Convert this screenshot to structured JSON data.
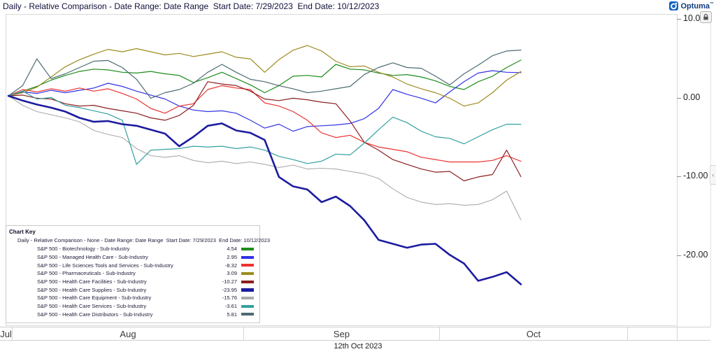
{
  "titlebar": {
    "title": "Daily - Relative Comparison - Date Range: Date Range  Start Date: 7/29/2023  End Date: 10/12/2023"
  },
  "logo": {
    "text": "Optuma",
    "tm": "™"
  },
  "controls": {
    "collapse_arrow": "‹"
  },
  "y_axis": {
    "labels": [
      "10.00",
      "0.00",
      "-10.00",
      "-20.00"
    ],
    "values": [
      10,
      0,
      -10,
      -20
    ]
  },
  "x_axis": {
    "months": [
      "Jul",
      "Aug",
      "Sep",
      "Oct"
    ],
    "footer_date": "12th Oct 2023"
  },
  "chart_key": {
    "title": "Chart Key",
    "subtitle": "Daily - Relative Comparison - None - Date Range: Date Range  Start Date: 7/29/2023  End Date: 10/12/2023"
  },
  "chart_data": {
    "type": "line",
    "title": "Daily - Relative Comparison",
    "start_date": "7/29/2023",
    "end_date": "10/12/2023",
    "ylim": [
      -26,
      10.5
    ],
    "grid": false,
    "legend_position": "bottom-left box (Chart Key)",
    "x_description": "trading days from late Jul 2023 to 12 Oct 2023, 37 sampled points per series",
    "series": [
      {
        "name": "biotechnology",
        "label": "S&P 500 - Biotechnology - Sub-Industry",
        "value_label": "4.54",
        "end_value": 4.54,
        "color": "#1e8c1e",
        "width": 1.2,
        "values": [
          0,
          0.6,
          1.2,
          2.0,
          2.6,
          3.1,
          3.4,
          3.3,
          3.0,
          2.9,
          3.1,
          2.8,
          2.6,
          1.7,
          2.3,
          3.0,
          2.2,
          1.4,
          0.4,
          1.3,
          2.5,
          2.6,
          2.4,
          4.0,
          3.4,
          3.3,
          2.9,
          2.6,
          2.7,
          2.4,
          1.9,
          1.2,
          0.8,
          1.8,
          2.5,
          3.6,
          4.54
        ]
      },
      {
        "name": "managed-health-care",
        "label": "S&P 500 - Managed Health Care - Sub-Industry",
        "value_label": "2.95",
        "end_value": 2.95,
        "color": "#3232e6",
        "width": 1.2,
        "values": [
          0,
          0.5,
          0.3,
          0.7,
          0.4,
          0.7,
          1.0,
          1.6,
          1.2,
          0.6,
          0.1,
          -0.4,
          -1.3,
          -1.8,
          -2.0,
          -1.9,
          -2.2,
          -3.1,
          -4.1,
          -3.6,
          -4.5,
          -3.9,
          -3.8,
          -3.7,
          -3.5,
          -2.9,
          -1.6,
          0.8,
          0.2,
          -0.3,
          -0.9,
          0.5,
          1.8,
          2.9,
          3.2,
          3.0,
          2.95
        ]
      },
      {
        "name": "life-sciences-tools-and-services",
        "label": "S&P 500 - Life Sciences Tools and Services - Sub-Industry",
        "value_label": "-8.32",
        "end_value": -8.32,
        "color": "#ee3232",
        "width": 1.2,
        "values": [
          0,
          0.8,
          0.5,
          0.9,
          0.6,
          1.0,
          0.6,
          0.9,
          0.3,
          -0.4,
          -1.6,
          -2.2,
          -1.3,
          -1.0,
          0.8,
          1.3,
          1.0,
          0.8,
          -0.9,
          -1.3,
          -2.0,
          -3.1,
          -4.7,
          -5.3,
          -5.0,
          -5.9,
          -6.5,
          -6.8,
          -7.1,
          -7.8,
          -8.1,
          -8.4,
          -8.4,
          -8.4,
          -8.2,
          -7.6,
          -8.32
        ]
      },
      {
        "name": "pharmaceuticals",
        "label": "S&P 500 - Pharmaceuticals - Sub-Industry",
        "value_label": "3.09",
        "end_value": 3.09,
        "color": "#9d8b21",
        "width": 1.2,
        "values": [
          0,
          0.4,
          1.1,
          2.4,
          3.7,
          4.6,
          5.3,
          5.9,
          5.6,
          6.0,
          5.6,
          5.2,
          5.4,
          5.0,
          5.3,
          5.6,
          4.9,
          4.7,
          3.0,
          4.6,
          5.8,
          6.4,
          5.7,
          4.4,
          3.7,
          3.8,
          3.0,
          2.4,
          1.5,
          0.9,
          0.4,
          -0.3,
          -1.3,
          -0.9,
          0.4,
          2.0,
          3.09
        ]
      },
      {
        "name": "health-care-facilities",
        "label": "S&P 500 - Health Care Facilities - Sub-Industry",
        "value_label": "-10.27",
        "end_value": -10.27,
        "color": "#8c1e1e",
        "width": 1.2,
        "values": [
          0,
          0.1,
          -0.3,
          -0.4,
          -1.0,
          -1.3,
          -1.2,
          -1.6,
          -1.9,
          -2.2,
          -2.8,
          -3.1,
          -2.5,
          -1.2,
          1.8,
          1.5,
          1.3,
          0.6,
          -0.4,
          -0.6,
          -0.3,
          -0.5,
          -0.8,
          -1.0,
          -3.2,
          -5.9,
          -6.9,
          -8.1,
          -8.7,
          -9.3,
          -9.7,
          -9.6,
          -10.8,
          -10.3,
          -10.0,
          -6.9,
          -10.27
        ]
      },
      {
        "name": "health-care-supplies",
        "label": "S&P 500 - Health Care Supplies - Sub-Industry",
        "value_label": "-23.95",
        "end_value": -23.95,
        "color": "#1c1ca0",
        "width": 2.6,
        "values": [
          0,
          -0.6,
          -1.1,
          -1.5,
          -2.0,
          -2.8,
          -3.3,
          -3.2,
          -3.6,
          -3.8,
          -4.3,
          -4.8,
          -6.4,
          -5.2,
          -3.8,
          -3.5,
          -4.4,
          -4.7,
          -5.6,
          -10.3,
          -11.5,
          -11.9,
          -13.5,
          -12.8,
          -14.0,
          -15.8,
          -18.3,
          -18.8,
          -19.3,
          -18.9,
          -18.8,
          -20.2,
          -21.3,
          -23.5,
          -23.0,
          -22.4,
          -23.95
        ]
      },
      {
        "name": "health-care-equipment",
        "label": "S&P 500 - Health Care Equipment - Sub-Industry",
        "value_label": "-15.76",
        "end_value": -15.76,
        "color": "#ababab",
        "width": 1.1,
        "values": [
          0,
          -1.2,
          -2.0,
          -2.4,
          -2.8,
          -3.3,
          -4.4,
          -4.9,
          -5.3,
          -6.7,
          -7.6,
          -7.8,
          -7.6,
          -8.2,
          -8.5,
          -8.3,
          -8.6,
          -8.4,
          -8.7,
          -9.1,
          -8.8,
          -9.3,
          -9.2,
          -9.3,
          -9.6,
          -9.9,
          -10.5,
          -11.8,
          -12.9,
          -13.5,
          -13.8,
          -13.7,
          -13.9,
          -13.8,
          -13.2,
          -12.1,
          -15.76
        ]
      },
      {
        "name": "health-care-services",
        "label": "S&P 500 - Health Care Services - Sub-Industry",
        "value_label": "-3.61",
        "end_value": -3.61,
        "color": "#35a0a0",
        "width": 1.2,
        "values": [
          0,
          0.6,
          -0.4,
          -0.2,
          -1.2,
          -1.5,
          -1.9,
          -2.3,
          -3.1,
          -8.7,
          -6.9,
          -6.8,
          -6.7,
          -6.4,
          -6.5,
          -6.4,
          -6.7,
          -6.5,
          -6.9,
          -7.7,
          -8.1,
          -8.6,
          -8.3,
          -7.4,
          -7.5,
          -6.0,
          -4.3,
          -2.7,
          -3.4,
          -4.5,
          -5.2,
          -5.4,
          -6.1,
          -5.2,
          -4.3,
          -3.6,
          -3.61
        ]
      },
      {
        "name": "health-care-distributors",
        "label": "S&P 500 - Health Care Distributors - Sub-Industry",
        "value_label": "5.81",
        "end_value": 5.81,
        "color": "#4d6b72",
        "width": 1.2,
        "values": [
          0,
          1.3,
          4.7,
          2.2,
          2.8,
          3.6,
          4.4,
          4.5,
          3.6,
          2.1,
          -0.3,
          0.4,
          0.8,
          1.6,
          3.0,
          4.0,
          3.0,
          2.1,
          1.8,
          1.3,
          0.9,
          0.4,
          0.6,
          0.9,
          1.2,
          2.7,
          3.6,
          4.2,
          3.6,
          3.5,
          2.5,
          1.4,
          2.8,
          3.9,
          5.1,
          5.7,
          5.81
        ]
      }
    ]
  }
}
